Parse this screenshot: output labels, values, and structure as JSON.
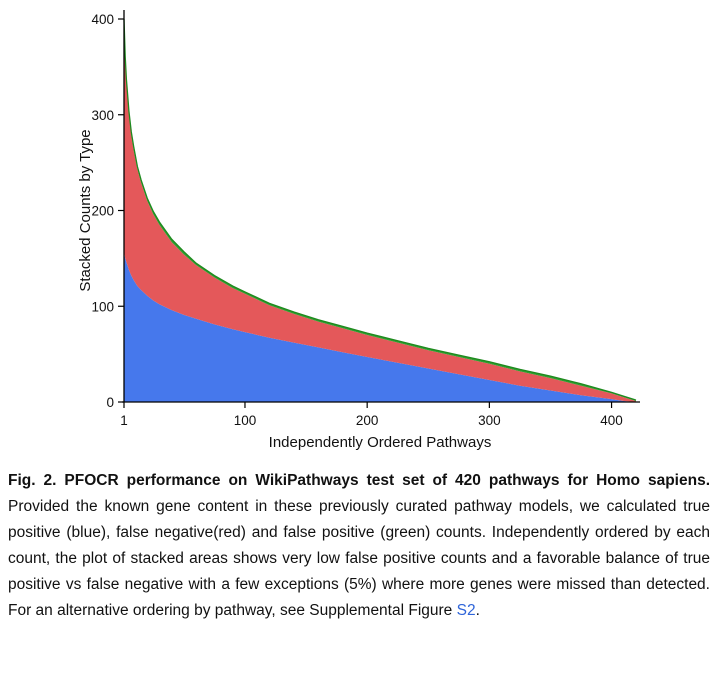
{
  "figure": {
    "caption": {
      "label_bold": "Fig. 2. PFOCR performance on WikiPathways test set of 420 pathways for Homo sapiens.",
      "body": " Provided the known gene content in these previously curated pathway models, we calculated true positive (blue), false negative(red) and false positive (green) counts. Independently ordered by each count, the plot of stacked areas shows very low false positive counts and a favorable balance of true positive vs false negative with a few exceptions (5%) where more genes were missed than detected. For an alternative ordering by pathway, see Supplemental Figure ",
      "link": "S2",
      "after_link": "."
    }
  },
  "colors": {
    "true_positive_blue": "#4678EC",
    "false_negative_red": "#E4585A",
    "false_positive_green": "#2E9E2E",
    "green_edge": "#1F8A1F",
    "axis": "#000000",
    "text": "#111111",
    "link_blue": "#2E64D9"
  },
  "chart_data": {
    "type": "area",
    "stacked": true,
    "title": "",
    "xlabel": "Independently Ordered Pathways",
    "ylabel": "Stacked Counts by Type",
    "xlim": [
      1,
      420
    ],
    "ylim": [
      0,
      400
    ],
    "x_ticks": [
      1,
      100,
      200,
      300,
      400
    ],
    "y_ticks": [
      0,
      100,
      200,
      300,
      400
    ],
    "legend": "none",
    "grid": false,
    "x": [
      1,
      2,
      3,
      4,
      5,
      7,
      9,
      12,
      15,
      20,
      25,
      30,
      40,
      50,
      60,
      75,
      90,
      100,
      120,
      140,
      160,
      180,
      200,
      225,
      250,
      275,
      300,
      325,
      350,
      375,
      400,
      410,
      420
    ],
    "series": [
      {
        "name": "true positive",
        "color": "#4678EC",
        "values": [
          157,
          150,
          146,
          142,
          138,
          132,
          127,
          121,
          117,
          111,
          106,
          102,
          96,
          91,
          87,
          81,
          76,
          73,
          67,
          62,
          57,
          52,
          47,
          41,
          35,
          29,
          23,
          17,
          12,
          7,
          3,
          1,
          0
        ]
      },
      {
        "name": "false negative",
        "color": "#E4585A",
        "values": [
          235,
          205,
          186,
          173,
          162,
          146,
          135,
          122,
          112,
          99,
          90,
          83,
          71,
          63,
          56,
          49,
          43,
          40,
          34,
          30,
          27,
          25,
          23,
          21,
          19,
          18,
          17,
          15,
          13,
          10,
          6,
          4,
          1
        ]
      },
      {
        "name": "false positive",
        "color": "#2E9E2E",
        "edge": "#1F8A1F",
        "values": [
          8,
          6,
          5,
          5,
          4,
          4,
          4,
          3,
          3,
          3,
          3,
          3,
          3,
          3,
          2,
          2,
          2,
          2,
          2,
          2,
          2,
          2,
          2,
          2,
          2,
          2,
          2,
          2,
          2,
          2,
          1,
          1,
          1
        ]
      }
    ]
  }
}
